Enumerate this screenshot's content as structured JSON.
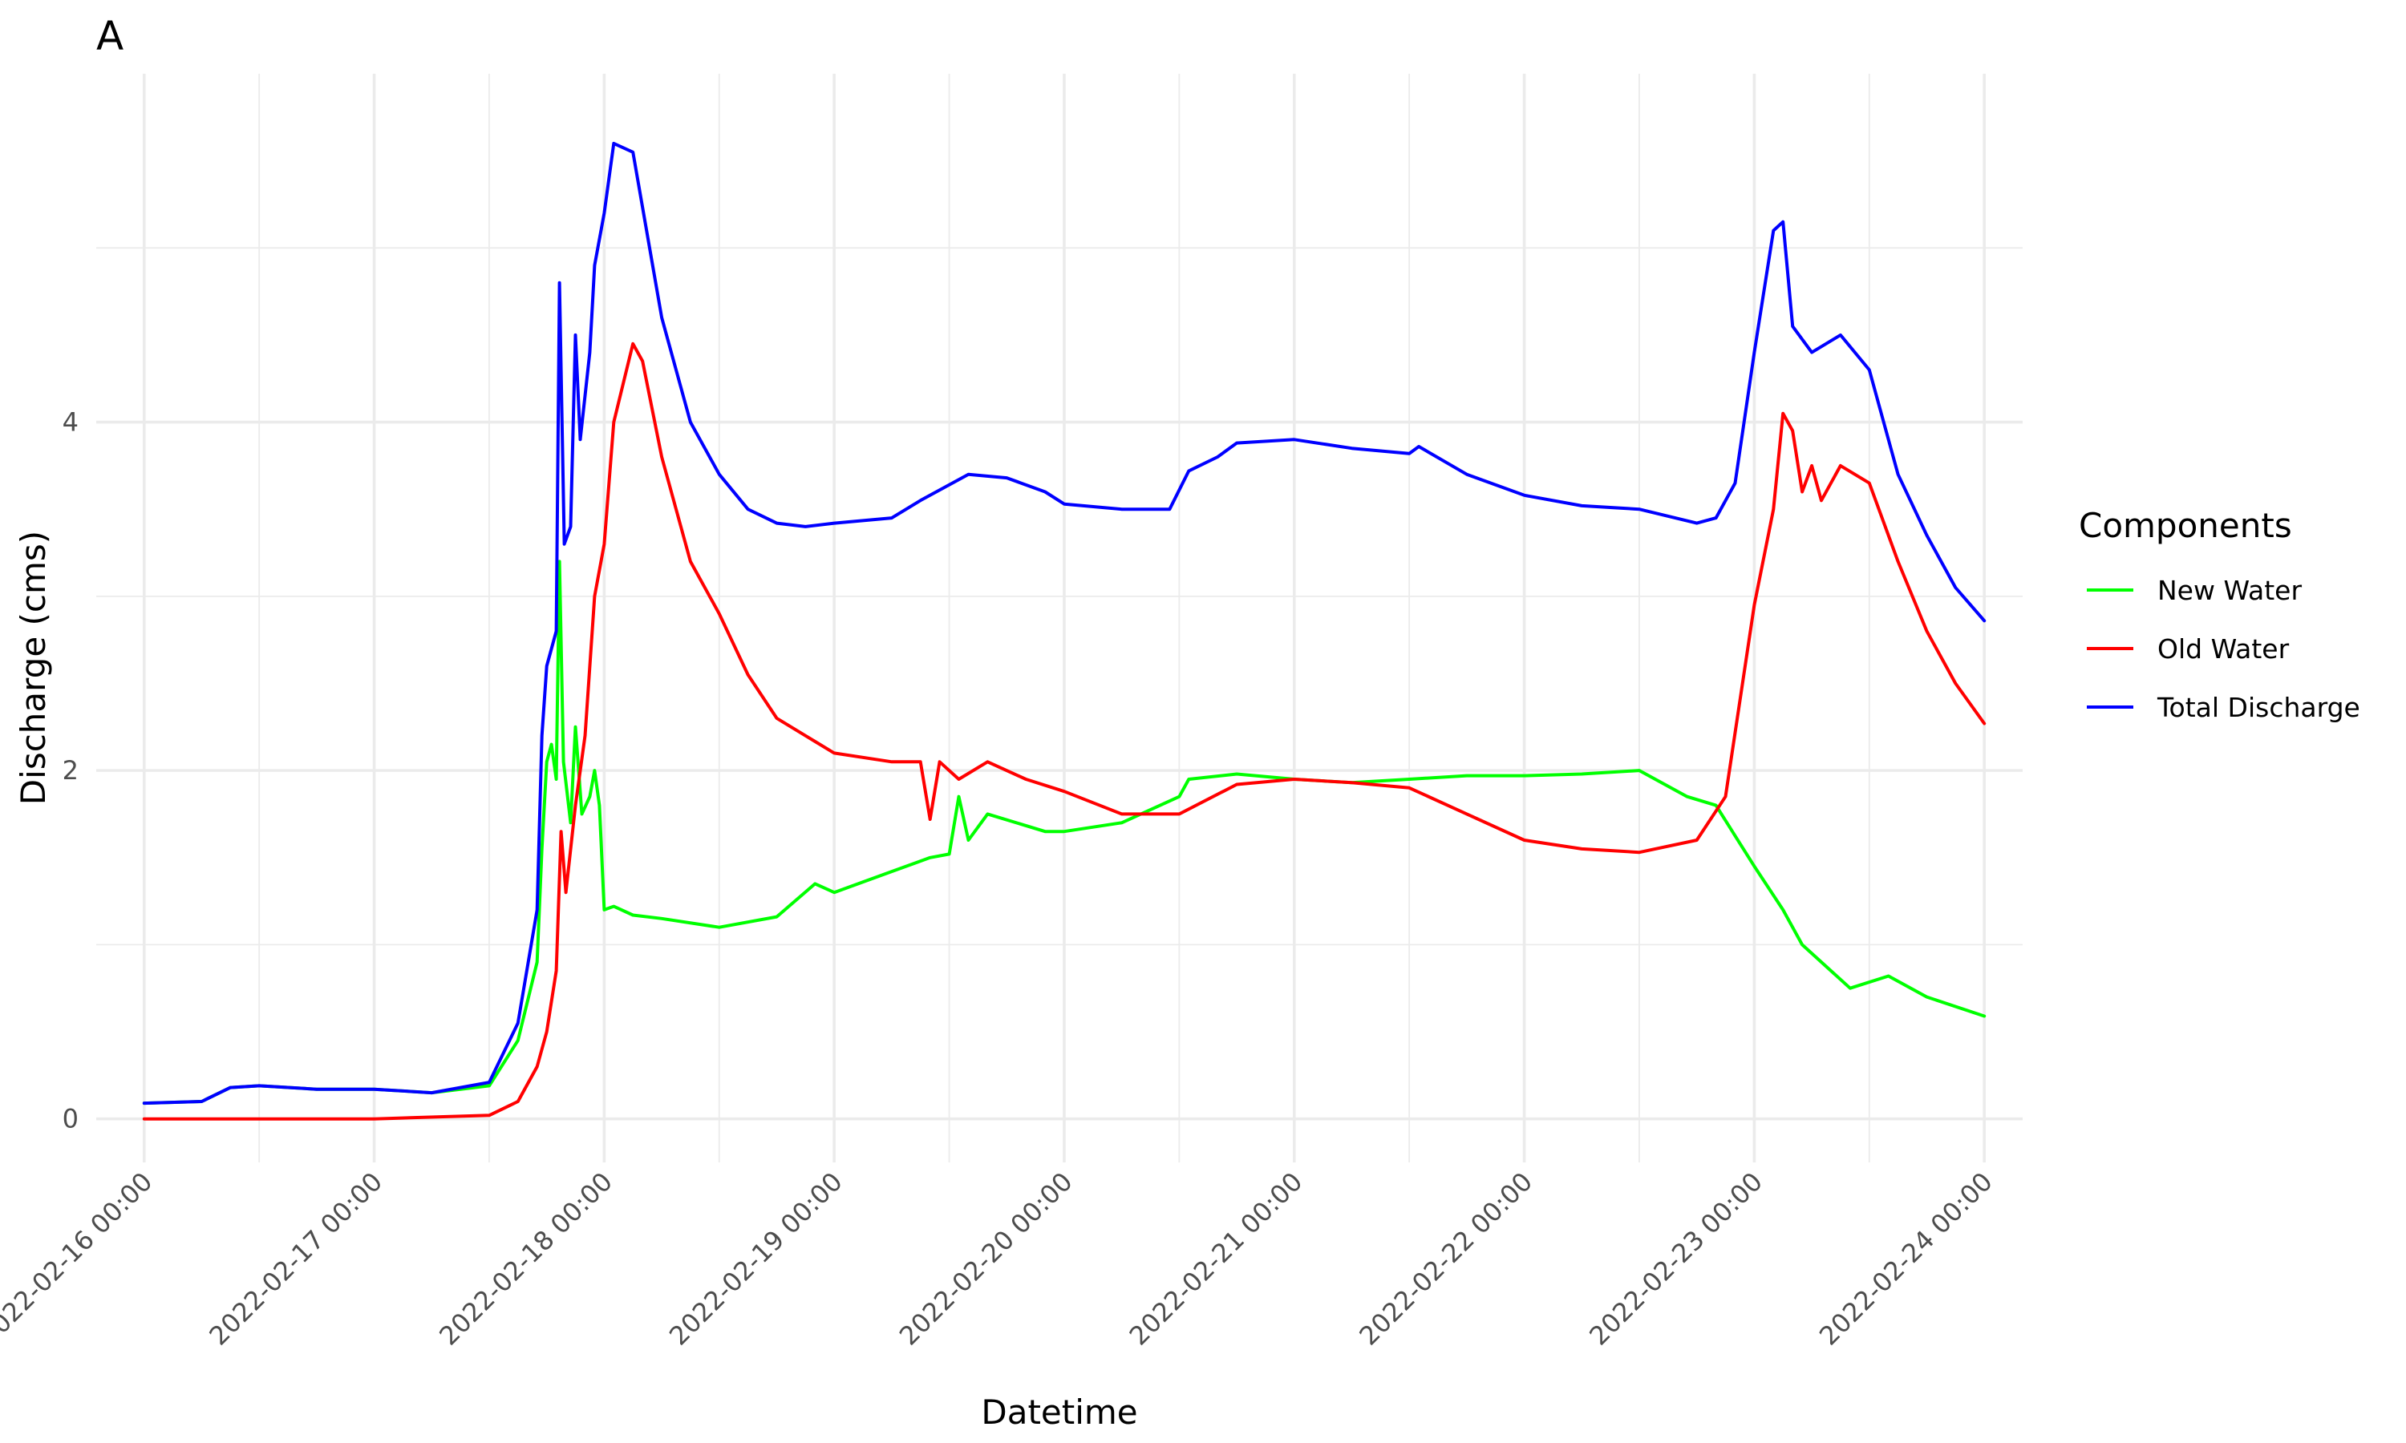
{
  "panel_tag": "A",
  "chart_data": {
    "type": "line",
    "title": "",
    "xlabel": "Datetime",
    "ylabel": "Discharge (cms)",
    "x_ticks": [
      "2022-02-16 00:00",
      "2022-02-17 00:00",
      "2022-02-18 00:00",
      "2022-02-19 00:00",
      "2022-02-20 00:00",
      "2022-02-21 00:00",
      "2022-02-22 00:00",
      "2022-02-23 00:00",
      "2022-02-24 00:00"
    ],
    "y_ticks": [
      0,
      2,
      4
    ],
    "xlim": [
      "2022-02-15 19:00",
      "2022-02-24 04:00"
    ],
    "ylim": [
      -0.25,
      6.0
    ],
    "grid": true,
    "legend": {
      "title": "Components",
      "position": "right"
    },
    "series": [
      {
        "name": "New Water",
        "color": "#00ff00",
        "points": [
          [
            "2022-02-16 00:00",
            0.09
          ],
          [
            "2022-02-16 06:00",
            0.1
          ],
          [
            "2022-02-16 09:00",
            0.18
          ],
          [
            "2022-02-16 12:00",
            0.19
          ],
          [
            "2022-02-16 18:00",
            0.17
          ],
          [
            "2022-02-17 00:00",
            0.17
          ],
          [
            "2022-02-17 06:00",
            0.15
          ],
          [
            "2022-02-17 12:00",
            0.19
          ],
          [
            "2022-02-17 15:00",
            0.45
          ],
          [
            "2022-02-17 17:00",
            0.9
          ],
          [
            "2022-02-17 17:30",
            1.55
          ],
          [
            "2022-02-17 18:00",
            2.05
          ],
          [
            "2022-02-17 18:30",
            2.15
          ],
          [
            "2022-02-17 19:00",
            1.95
          ],
          [
            "2022-02-17 19:20",
            3.2
          ],
          [
            "2022-02-17 19:45",
            2.05
          ],
          [
            "2022-02-17 20:30",
            1.7
          ],
          [
            "2022-02-17 21:00",
            2.25
          ],
          [
            "2022-02-17 21:40",
            1.75
          ],
          [
            "2022-02-17 22:30",
            1.85
          ],
          [
            "2022-02-17 23:00",
            2.0
          ],
          [
            "2022-02-17 23:30",
            1.8
          ],
          [
            "2022-02-18 00:00",
            1.2
          ],
          [
            "2022-02-18 01:00",
            1.22
          ],
          [
            "2022-02-18 03:00",
            1.17
          ],
          [
            "2022-02-18 06:00",
            1.15
          ],
          [
            "2022-02-18 12:00",
            1.1
          ],
          [
            "2022-02-18 18:00",
            1.16
          ],
          [
            "2022-02-18 22:00",
            1.35
          ],
          [
            "2022-02-19 00:00",
            1.3
          ],
          [
            "2022-02-19 06:00",
            1.42
          ],
          [
            "2022-02-19 10:00",
            1.5
          ],
          [
            "2022-02-19 12:00",
            1.52
          ],
          [
            "2022-02-19 13:00",
            1.85
          ],
          [
            "2022-02-19 14:00",
            1.6
          ],
          [
            "2022-02-19 16:00",
            1.75
          ],
          [
            "2022-02-19 22:00",
            1.65
          ],
          [
            "2022-02-20 00:00",
            1.65
          ],
          [
            "2022-02-20 06:00",
            1.7
          ],
          [
            "2022-02-20 12:00",
            1.85
          ],
          [
            "2022-02-20 13:00",
            1.95
          ],
          [
            "2022-02-20 18:00",
            1.98
          ],
          [
            "2022-02-21 00:00",
            1.95
          ],
          [
            "2022-02-21 06:00",
            1.93
          ],
          [
            "2022-02-21 12:00",
            1.95
          ],
          [
            "2022-02-21 18:00",
            1.97
          ],
          [
            "2022-02-22 00:00",
            1.97
          ],
          [
            "2022-02-22 06:00",
            1.98
          ],
          [
            "2022-02-22 12:00",
            2.0
          ],
          [
            "2022-02-22 17:00",
            1.85
          ],
          [
            "2022-02-22 20:00",
            1.8
          ],
          [
            "2022-02-23 00:00",
            1.45
          ],
          [
            "2022-02-23 03:00",
            1.2
          ],
          [
            "2022-02-23 05:00",
            1.0
          ],
          [
            "2022-02-23 08:00",
            0.85
          ],
          [
            "2022-02-23 10:00",
            0.75
          ],
          [
            "2022-02-23 14:00",
            0.82
          ],
          [
            "2022-02-23 18:00",
            0.7
          ],
          [
            "2022-02-24 00:00",
            0.59
          ]
        ]
      },
      {
        "name": "Old Water",
        "color": "#ff0000",
        "points": [
          [
            "2022-02-16 00:00",
            0.0
          ],
          [
            "2022-02-17 00:00",
            0.0
          ],
          [
            "2022-02-17 12:00",
            0.02
          ],
          [
            "2022-02-17 15:00",
            0.1
          ],
          [
            "2022-02-17 17:00",
            0.3
          ],
          [
            "2022-02-17 18:00",
            0.5
          ],
          [
            "2022-02-17 19:00",
            0.85
          ],
          [
            "2022-02-17 19:30",
            1.65
          ],
          [
            "2022-02-17 20:00",
            1.3
          ],
          [
            "2022-02-17 21:00",
            1.8
          ],
          [
            "2022-02-17 22:00",
            2.2
          ],
          [
            "2022-02-17 23:00",
            3.0
          ],
          [
            "2022-02-18 00:00",
            3.3
          ],
          [
            "2022-02-18 01:00",
            4.0
          ],
          [
            "2022-02-18 03:00",
            4.45
          ],
          [
            "2022-02-18 04:00",
            4.35
          ],
          [
            "2022-02-18 06:00",
            3.8
          ],
          [
            "2022-02-18 09:00",
            3.2
          ],
          [
            "2022-02-18 12:00",
            2.9
          ],
          [
            "2022-02-18 15:00",
            2.55
          ],
          [
            "2022-02-18 18:00",
            2.3
          ],
          [
            "2022-02-18 21:00",
            2.2
          ],
          [
            "2022-02-19 00:00",
            2.1
          ],
          [
            "2022-02-19 06:00",
            2.05
          ],
          [
            "2022-02-19 09:00",
            2.05
          ],
          [
            "2022-02-19 10:00",
            1.72
          ],
          [
            "2022-02-19 11:00",
            2.05
          ],
          [
            "2022-02-19 13:00",
            1.95
          ],
          [
            "2022-02-19 16:00",
            2.05
          ],
          [
            "2022-02-19 20:00",
            1.95
          ],
          [
            "2022-02-20 00:00",
            1.88
          ],
          [
            "2022-02-20 06:00",
            1.75
          ],
          [
            "2022-02-20 12:00",
            1.75
          ],
          [
            "2022-02-20 18:00",
            1.92
          ],
          [
            "2022-02-21 00:00",
            1.95
          ],
          [
            "2022-02-21 06:00",
            1.93
          ],
          [
            "2022-02-21 12:00",
            1.9
          ],
          [
            "2022-02-21 18:00",
            1.75
          ],
          [
            "2022-02-22 00:00",
            1.6
          ],
          [
            "2022-02-22 06:00",
            1.55
          ],
          [
            "2022-02-22 12:00",
            1.53
          ],
          [
            "2022-02-22 18:00",
            1.6
          ],
          [
            "2022-02-22 21:00",
            1.85
          ],
          [
            "2022-02-23 00:00",
            2.95
          ],
          [
            "2022-02-23 02:00",
            3.5
          ],
          [
            "2022-02-23 03:00",
            4.05
          ],
          [
            "2022-02-23 04:00",
            3.95
          ],
          [
            "2022-02-23 05:00",
            3.6
          ],
          [
            "2022-02-23 06:00",
            3.75
          ],
          [
            "2022-02-23 07:00",
            3.55
          ],
          [
            "2022-02-23 09:00",
            3.75
          ],
          [
            "2022-02-23 12:00",
            3.65
          ],
          [
            "2022-02-23 15:00",
            3.2
          ],
          [
            "2022-02-23 18:00",
            2.8
          ],
          [
            "2022-02-23 21:00",
            2.5
          ],
          [
            "2022-02-24 00:00",
            2.27
          ]
        ]
      },
      {
        "name": "Total Discharge",
        "color": "#0000ff",
        "points": [
          [
            "2022-02-16 00:00",
            0.09
          ],
          [
            "2022-02-16 06:00",
            0.1
          ],
          [
            "2022-02-16 09:00",
            0.18
          ],
          [
            "2022-02-16 12:00",
            0.19
          ],
          [
            "2022-02-16 18:00",
            0.17
          ],
          [
            "2022-02-17 00:00",
            0.17
          ],
          [
            "2022-02-17 06:00",
            0.15
          ],
          [
            "2022-02-17 12:00",
            0.21
          ],
          [
            "2022-02-17 15:00",
            0.55
          ],
          [
            "2022-02-17 17:00",
            1.2
          ],
          [
            "2022-02-17 17:30",
            2.2
          ],
          [
            "2022-02-17 18:00",
            2.6
          ],
          [
            "2022-02-17 19:00",
            2.8
          ],
          [
            "2022-02-17 19:20",
            4.8
          ],
          [
            "2022-02-17 19:50",
            3.3
          ],
          [
            "2022-02-17 20:30",
            3.4
          ],
          [
            "2022-02-17 21:00",
            4.5
          ],
          [
            "2022-02-17 21:30",
            3.9
          ],
          [
            "2022-02-17 22:30",
            4.4
          ],
          [
            "2022-02-17 23:00",
            4.9
          ],
          [
            "2022-02-18 00:00",
            5.2
          ],
          [
            "2022-02-18 01:00",
            5.6
          ],
          [
            "2022-02-18 03:00",
            5.55
          ],
          [
            "2022-02-18 06:00",
            4.6
          ],
          [
            "2022-02-18 09:00",
            4.0
          ],
          [
            "2022-02-18 12:00",
            3.7
          ],
          [
            "2022-02-18 15:00",
            3.5
          ],
          [
            "2022-02-18 18:00",
            3.42
          ],
          [
            "2022-02-18 21:00",
            3.4
          ],
          [
            "2022-02-19 00:00",
            3.42
          ],
          [
            "2022-02-19 06:00",
            3.45
          ],
          [
            "2022-02-19 09:00",
            3.55
          ],
          [
            "2022-02-19 14:00",
            3.7
          ],
          [
            "2022-02-19 18:00",
            3.68
          ],
          [
            "2022-02-19 22:00",
            3.6
          ],
          [
            "2022-02-20 00:00",
            3.53
          ],
          [
            "2022-02-20 06:00",
            3.5
          ],
          [
            "2022-02-20 11:00",
            3.5
          ],
          [
            "2022-02-20 13:00",
            3.72
          ],
          [
            "2022-02-20 16:00",
            3.8
          ],
          [
            "2022-02-20 18:00",
            3.88
          ],
          [
            "2022-02-21 00:00",
            3.9
          ],
          [
            "2022-02-21 06:00",
            3.85
          ],
          [
            "2022-02-21 12:00",
            3.82
          ],
          [
            "2022-02-21 13:00",
            3.86
          ],
          [
            "2022-02-21 18:00",
            3.7
          ],
          [
            "2022-02-22 00:00",
            3.58
          ],
          [
            "2022-02-22 06:00",
            3.52
          ],
          [
            "2022-02-22 12:00",
            3.5
          ],
          [
            "2022-02-22 18:00",
            3.42
          ],
          [
            "2022-02-22 20:00",
            3.45
          ],
          [
            "2022-02-22 22:00",
            3.65
          ],
          [
            "2022-02-23 00:00",
            4.4
          ],
          [
            "2022-02-23 02:00",
            5.1
          ],
          [
            "2022-02-23 03:00",
            5.15
          ],
          [
            "2022-02-23 04:00",
            4.55
          ],
          [
            "2022-02-23 06:00",
            4.4
          ],
          [
            "2022-02-23 09:00",
            4.5
          ],
          [
            "2022-02-23 12:00",
            4.3
          ],
          [
            "2022-02-23 15:00",
            3.7
          ],
          [
            "2022-02-23 18:00",
            3.35
          ],
          [
            "2022-02-23 21:00",
            3.05
          ],
          [
            "2022-02-24 00:00",
            2.86
          ]
        ]
      }
    ]
  }
}
